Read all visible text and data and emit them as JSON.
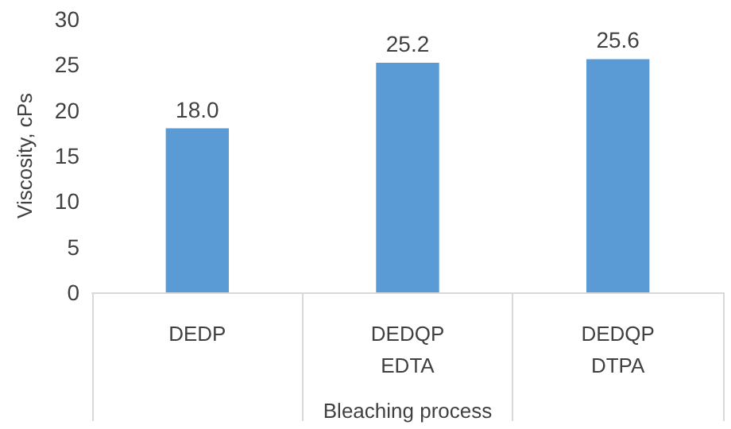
{
  "chart_data": {
    "type": "bar",
    "xlabel": "Bleaching process",
    "ylabel": "Viscosity, cPs",
    "categories": [
      "DEDP",
      "DEDQP\nEDTA",
      "DEDQP\nDTPA"
    ],
    "values": [
      18.0,
      25.2,
      25.6
    ],
    "value_labels": [
      "18.0",
      "25.2",
      "25.6"
    ],
    "color": "#5b9bd5",
    "ylim": [
      0,
      30
    ],
    "yticks": [
      0,
      5,
      10,
      15,
      20,
      25,
      30
    ],
    "grid": false
  }
}
